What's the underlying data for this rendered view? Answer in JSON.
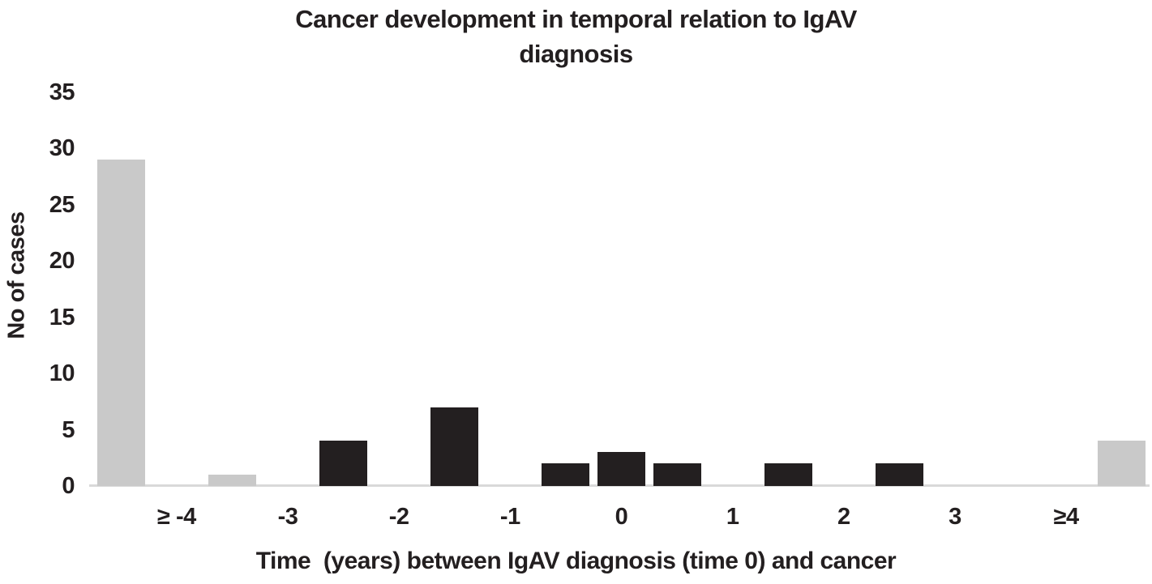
{
  "figure": {
    "title_lines": [
      "Cancer development in temporal relation to IgAV",
      "diagnosis"
    ]
  },
  "chart_data": {
    "type": "bar",
    "title": "Cancer development in temporal relation to IgAV diagnosis",
    "xlabel": "Time  (years) between IgAV diagnosis (time 0) and cancer",
    "ylabel": "No of cases",
    "ylim": [
      0,
      35
    ],
    "yticks": [
      0,
      5,
      10,
      15,
      20,
      25,
      30,
      35
    ],
    "grid": false,
    "legend": false,
    "x_axis": {
      "slot_count": 19,
      "slot_step_years": 0.5,
      "tick_slots": [
        1,
        3,
        5,
        7,
        9,
        11,
        13,
        15,
        17
      ],
      "tick_labels": [
        "≥ -4",
        "-3",
        "-2",
        "-1",
        "0",
        "1",
        "2",
        "3",
        "≥4"
      ]
    },
    "bars": [
      {
        "slot": 0,
        "x": -4.5,
        "value": 29,
        "series": "gray"
      },
      {
        "slot": 2,
        "x": -3.5,
        "value": 1,
        "series": "gray"
      },
      {
        "slot": 4,
        "x": -2.5,
        "value": 4,
        "series": "black"
      },
      {
        "slot": 6,
        "x": -1.5,
        "value": 7,
        "series": "black"
      },
      {
        "slot": 8,
        "x": -0.5,
        "value": 2,
        "series": "black"
      },
      {
        "slot": 9,
        "x": 0,
        "value": 3,
        "series": "black"
      },
      {
        "slot": 10,
        "x": 0.5,
        "value": 2,
        "series": "black"
      },
      {
        "slot": 12,
        "x": 1.5,
        "value": 2,
        "series": "black"
      },
      {
        "slot": 14,
        "x": 2.5,
        "value": 2,
        "series": "black"
      },
      {
        "slot": 18,
        "x": 4.5,
        "value": 4,
        "series": "gray"
      }
    ],
    "colors": {
      "gray": "#c9c9c9",
      "black": "#231f20",
      "axis_line": "#d9d9d9",
      "text": "#231f20"
    }
  }
}
